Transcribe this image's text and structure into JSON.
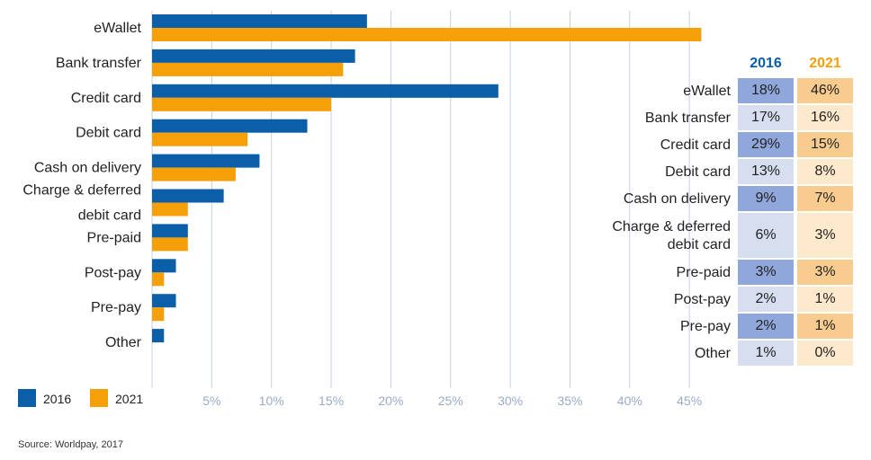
{
  "chart_data": {
    "type": "bar",
    "orientation": "horizontal",
    "categories": [
      "eWallet",
      "Bank transfer",
      "Credit card",
      "Debit card",
      "Cash on delivery",
      "Charge & deferred debit card",
      "Pre-paid",
      "Post-pay",
      "Pre-pay",
      "Other"
    ],
    "category_lines": [
      [
        "eWallet"
      ],
      [
        "Bank transfer"
      ],
      [
        "Credit card"
      ],
      [
        "Debit card"
      ],
      [
        "Cash on delivery"
      ],
      [
        "Charge & deferred",
        "debit card"
      ],
      [
        "Pre-paid"
      ],
      [
        "Post-pay"
      ],
      [
        "Pre-pay"
      ],
      [
        "Other"
      ]
    ],
    "series": [
      {
        "name": "2016",
        "color": "#0b5ea8",
        "values": [
          18,
          17,
          29,
          13,
          9,
          6,
          3,
          2,
          2,
          1
        ]
      },
      {
        "name": "2021",
        "color": "#f5a009",
        "values": [
          46,
          16,
          15,
          8,
          7,
          3,
          3,
          1,
          1,
          0
        ]
      }
    ],
    "xlim": [
      0,
      46
    ],
    "xticks": [
      5,
      10,
      15,
      20,
      25,
      30,
      35,
      40,
      45
    ],
    "xtick_labels": [
      "5%",
      "10%",
      "15%",
      "20%",
      "25%",
      "30%",
      "35%",
      "40%",
      "45%"
    ],
    "grid": "vertical",
    "legend_placement": "bottom-left"
  },
  "table": {
    "headers": [
      "2016",
      "2021"
    ],
    "header_colors": [
      "#0b5ea8",
      "#f5a009"
    ],
    "rows": [
      {
        "label": "eWallet",
        "v2016": "18%",
        "v2021": "46%"
      },
      {
        "label": "Bank transfer",
        "v2016": "17%",
        "v2021": "16%"
      },
      {
        "label": "Credit card",
        "v2016": "29%",
        "v2021": "15%"
      },
      {
        "label": "Debit card",
        "v2016": "13%",
        "v2021": "8%"
      },
      {
        "label": "Cash on delivery",
        "v2016": "9%",
        "v2021": "7%"
      },
      {
        "label": "Charge & deferred debit card",
        "label_lines": [
          "Charge & deferred",
          "debit card"
        ],
        "v2016": "6%",
        "v2021": "3%"
      },
      {
        "label": "Pre-paid",
        "v2016": "3%",
        "v2021": "3%"
      },
      {
        "label": "Post-pay",
        "v2016": "2%",
        "v2021": "1%"
      },
      {
        "label": "Pre-pay",
        "v2016": "2%",
        "v2021": "1%"
      },
      {
        "label": "Other",
        "v2016": "1%",
        "v2021": "0%"
      }
    ],
    "cell_colors": {
      "c2016_dark": "#8fa7da",
      "c2016_light": "#d6deef",
      "c2021_dark": "#f8cc8e",
      "c2021_light": "#fde9cc"
    }
  },
  "source": "Source: Worldpay, 2017"
}
